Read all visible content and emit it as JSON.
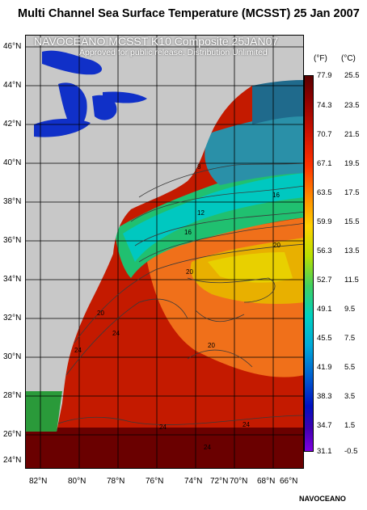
{
  "title": "Multi Channel Sea Surface Temperature (MCSST) 25 Jan 2007",
  "overlay_title": "NAVOCEANO MCSST K10 Composite 25JAN07",
  "overlay_subtitle": "Approved for public release. Distribution Unlimited",
  "lat_labels": [
    "46°N",
    "44°N",
    "42°N",
    "40°N",
    "38°N",
    "36°N",
    "34°N",
    "32°N",
    "30°N",
    "28°N",
    "26°N",
    "24°N"
  ],
  "lon_labels": [
    "82°N",
    "80°N",
    "78°N",
    "76°N",
    "74°N",
    "72°N",
    "70°N",
    "68°N",
    "66°N"
  ],
  "colorbar": {
    "unit_f": "(°F)",
    "unit_c": "(°C)",
    "ticks_f": [
      "77.9",
      "74.3",
      "70.7",
      "67.1",
      "63.5",
      "59.9",
      "56.3",
      "52.7",
      "49.1",
      "45.5",
      "41.9",
      "38.3",
      "34.7",
      "31.1"
    ],
    "ticks_c": [
      "25.5",
      "23.5",
      "21.5",
      "19.5",
      "17.5",
      "15.5",
      "13.5",
      "11.5",
      "9.5",
      "7.5",
      "5.5",
      "3.5",
      "1.5",
      "-0.5"
    ]
  },
  "contour_labels": [
    {
      "text": "8"
    },
    {
      "text": "12"
    },
    {
      "text": "16"
    },
    {
      "text": "16"
    },
    {
      "text": "20"
    },
    {
      "text": "20"
    },
    {
      "text": "20"
    },
    {
      "text": "20"
    },
    {
      "text": "24"
    },
    {
      "text": "24"
    },
    {
      "text": "24"
    },
    {
      "text": "24"
    },
    {
      "text": "24"
    }
  ],
  "credit": "NAVOCEANO",
  "colors": {
    "land": "#c8c8c8",
    "lakes": "#1030c8",
    "warm": "#d02000",
    "cool": "#00c0c0"
  }
}
